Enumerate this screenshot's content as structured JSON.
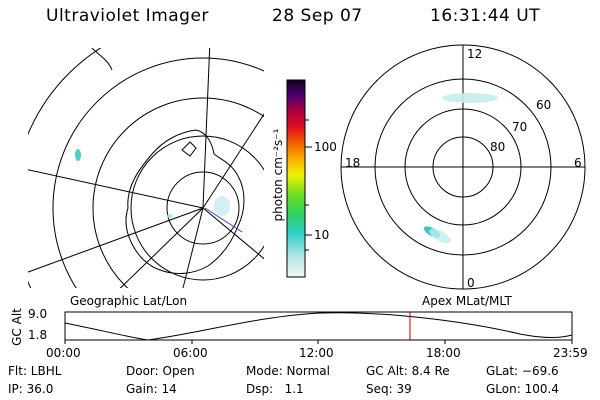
{
  "header": {
    "title": "Ultraviolet Imager",
    "date": "28 Sep 07",
    "time": "16:31:44 UT"
  },
  "colorbar": {
    "unit_label": "photon cm⁻²s⁻¹",
    "ticks": [
      "100",
      "10"
    ]
  },
  "left_map": {
    "caption": "Geographic Lat/Lon"
  },
  "right_map": {
    "caption": "Apex MLat/MLT",
    "mlt_labels": {
      "top": "12",
      "right": "6",
      "bottom": "0",
      "left": "18"
    },
    "lat_labels": [
      "60",
      "70",
      "80"
    ]
  },
  "timeline": {
    "ylabel": "GC Alt",
    "y_ticks": [
      "9.0",
      "1.8"
    ],
    "x_ticks": [
      "00:00",
      "06:00",
      "12:00",
      "18:00",
      "23:59"
    ],
    "marker_color": "#cc0000"
  },
  "info": {
    "filter": "Flt: LBHL",
    "ip": "IP: 36.0",
    "door": "Door: Open",
    "gain": "Gain: 14",
    "mode": "Mode: Normal",
    "dsp": "Dsp:   1.1",
    "gc_alt": "GC Alt: 8.4 Re",
    "seq": "Seq: 39",
    "glat": "GLat: −69.6",
    "glon": "GLon: 100.4"
  }
}
